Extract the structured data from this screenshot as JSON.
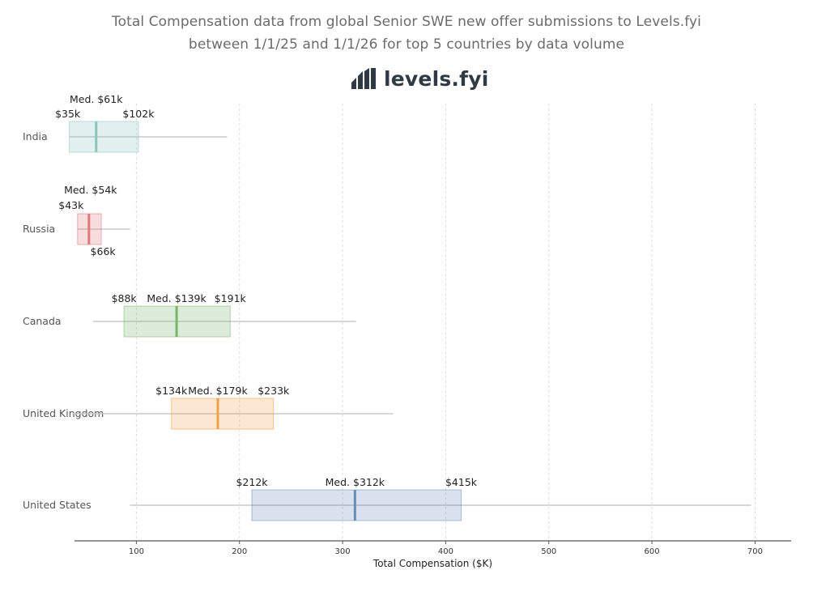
{
  "header": {
    "title_line1": "Total Compensation data from global Senior SWE new offer submissions to Levels.fyi",
    "title_line2": "between 1/1/25 and 1/1/26 for top 5 countries by data volume"
  },
  "logo": {
    "text": "levels.fyi",
    "icon": "levels-fyi-bar-logo-icon"
  },
  "chart_data": {
    "type": "box",
    "title": "Total Compensation data from global Senior SWE new offer submissions to Levels.fyi between 1/1/25 and 1/1/26 for top 5 countries by data volume",
    "xlabel": "Total Compensation ($K)",
    "ylabel": "",
    "xlim": [
      40,
      735
    ],
    "xticks": [
      100,
      200,
      300,
      400,
      500,
      600,
      700
    ],
    "grid": "vertical dashed",
    "series": [
      {
        "category": "India",
        "q1": 35,
        "median": 61,
        "q3": 102,
        "whisker_low": 35,
        "whisker_high": 188,
        "color": "#8cc5c0",
        "labels": {
          "q1": "$35k",
          "median": "Med. $61k",
          "q3": "$102k"
        }
      },
      {
        "category": "Russia",
        "q1": 43,
        "median": 54,
        "q3": 66,
        "whisker_low": 43,
        "whisker_high": 94,
        "color": "#e0777a",
        "labels": {
          "q1": "$43k",
          "median": "Med. $54k",
          "q3": "$66k"
        }
      },
      {
        "category": "Canada",
        "q1": 88,
        "median": 139,
        "q3": 191,
        "whisker_low": 58,
        "whisker_high": 313,
        "color": "#79b46a",
        "labels": {
          "q1": "$88k",
          "median": "Med. $139k",
          "q3": "$191k"
        }
      },
      {
        "category": "United Kingdom",
        "q1": 134,
        "median": 179,
        "q3": 233,
        "whisker_low": 38,
        "whisker_high": 349,
        "color": "#f0a04b",
        "labels": {
          "q1": "$134k",
          "median": "Med. $179k",
          "q3": "$233k"
        }
      },
      {
        "category": "United States",
        "q1": 212,
        "median": 312,
        "q3": 415,
        "whisker_low": 94,
        "whisker_high": 696,
        "color": "#6a8db8",
        "labels": {
          "q1": "$212k",
          "median": "Med. $312k",
          "q3": "$415k"
        }
      }
    ]
  }
}
